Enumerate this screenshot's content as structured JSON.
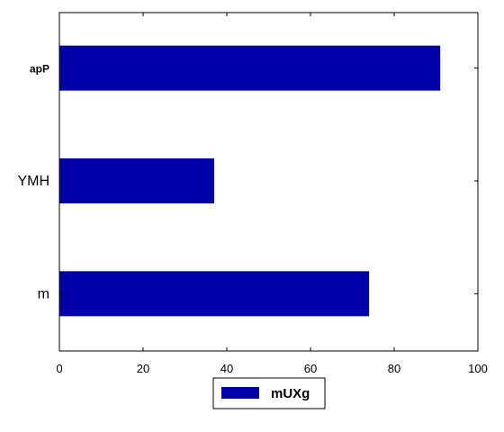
{
  "chart_data": {
    "type": "bar",
    "orientation": "horizontal",
    "categories": [
      "apP",
      "YMH",
      "m"
    ],
    "series": [
      {
        "name": "mUXg",
        "values": [
          91,
          37,
          74
        ],
        "color": "#0000a8"
      }
    ],
    "xlim": [
      0,
      100
    ],
    "xticks": [
      "0",
      "20",
      "40",
      "60",
      "80",
      "100"
    ],
    "grid": false,
    "legend_position": "bottom-center"
  }
}
